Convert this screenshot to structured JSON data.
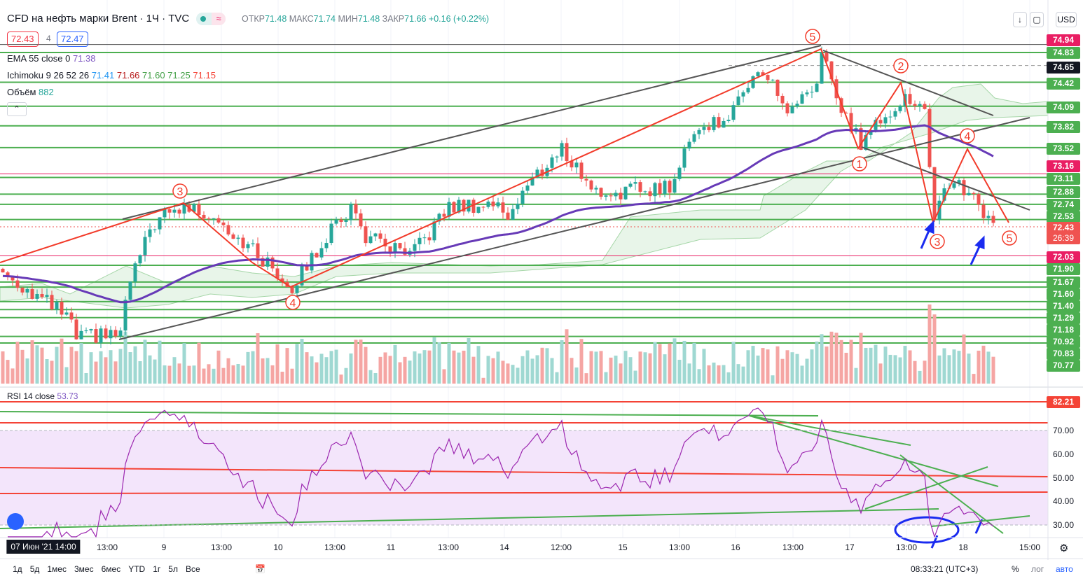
{
  "header": {
    "symbol": "CFD на нефть марки Brent · 1Ч · TVC",
    "status_icon": "≈",
    "ohlc": {
      "open_label": "ОТКР",
      "open": "71.48",
      "high_label": "МАКС",
      "high": "71.74",
      "low_label": "МИН",
      "low": "71.48",
      "close_label": "ЗАКР",
      "close": "71.66",
      "change": "+0.16 (+0.22%)"
    },
    "sell_price": "72.43",
    "spread": "4",
    "buy_price": "72.47",
    "currency": "USD"
  },
  "indicators": {
    "ema": {
      "label": "EMA 55 close 0",
      "value": "71.38"
    },
    "ichimoku": {
      "label": "Ichimoku 9 26 52 26",
      "values": [
        "71.41",
        "71.66",
        "71.60",
        "71.25",
        "71.15"
      ]
    },
    "volume": {
      "label": "Объём",
      "value": "882"
    },
    "rsi": {
      "label": "RSI 14 close",
      "value": "53.73"
    }
  },
  "price_axis": {
    "labels": [
      {
        "text": "74.94",
        "color": "#e91e63"
      },
      {
        "text": "74.83",
        "color": "#4caf50"
      },
      {
        "text": "74.65",
        "color": "#131722"
      },
      {
        "text": "74.42",
        "color": "#4caf50"
      },
      {
        "text": "74.09",
        "color": "#4caf50"
      },
      {
        "text": "73.82",
        "color": "#4caf50"
      },
      {
        "text": "73.52",
        "color": "#4caf50"
      },
      {
        "text": "73.16",
        "color": "#e91e63"
      },
      {
        "text": "73.11",
        "color": "#4caf50"
      },
      {
        "text": "72.88",
        "color": "#4caf50"
      },
      {
        "text": "72.74",
        "color": "#4caf50"
      },
      {
        "text": "72.53",
        "color": "#4caf50"
      },
      {
        "text": "72.43",
        "color": "#ef5350"
      },
      {
        "text": "72.03",
        "color": "#e91e63"
      },
      {
        "text": "71.90",
        "color": "#4caf50"
      },
      {
        "text": "71.67",
        "color": "#4caf50"
      },
      {
        "text": "71.60",
        "color": "#4caf50"
      },
      {
        "text": "71.40",
        "color": "#4caf50"
      },
      {
        "text": "71.29",
        "color": "#4caf50"
      },
      {
        "text": "71.18",
        "color": "#4caf50"
      },
      {
        "text": "70.92",
        "color": "#4caf50"
      },
      {
        "text": "70.83",
        "color": "#4caf50"
      },
      {
        "text": "70.77",
        "color": "#4caf50"
      }
    ],
    "countdown": "26:39",
    "rsi_labels": [
      "82.21",
      "70.00",
      "60.00",
      "50.00",
      "40.00",
      "30.00"
    ]
  },
  "chart_data": {
    "type": "candlestick",
    "waypoints_bar_price": [
      [
        0,
        71.8
      ],
      [
        13,
        71.2
      ],
      [
        15,
        70.9
      ],
      [
        24,
        70.95
      ],
      [
        26,
        71.7
      ],
      [
        31,
        72.5
      ],
      [
        37,
        72.7
      ],
      [
        43,
        72.6
      ],
      [
        51,
        72.1
      ],
      [
        59,
        71.6
      ],
      [
        66,
        72.3
      ],
      [
        71,
        72.7
      ],
      [
        74,
        72.3
      ],
      [
        83,
        72.0
      ],
      [
        91,
        72.7
      ],
      [
        100,
        72.75
      ],
      [
        103,
        72.6
      ],
      [
        107,
        73.0
      ],
      [
        114,
        73.5
      ],
      [
        121,
        72.9
      ],
      [
        124,
        72.9
      ],
      [
        137,
        73.0
      ],
      [
        140,
        73.7
      ],
      [
        149,
        74.0
      ],
      [
        153,
        74.6
      ],
      [
        157,
        74.4
      ],
      [
        160,
        74.0
      ],
      [
        166,
        74.3
      ],
      [
        167,
        74.9
      ],
      [
        171,
        74.0
      ],
      [
        175,
        73.6
      ],
      [
        180,
        74.0
      ],
      [
        184,
        74.2
      ],
      [
        188,
        74.0
      ],
      [
        190,
        72.6
      ],
      [
        194,
        73.1
      ],
      [
        198,
        72.8
      ],
      [
        202,
        72.45
      ]
    ],
    "horizontal_levels": [
      74.83,
      74.42,
      74.09,
      73.82,
      73.52,
      73.11,
      72.88,
      72.74,
      72.53,
      71.9,
      71.67,
      71.6,
      71.4,
      71.29,
      71.18,
      70.92,
      70.83
    ],
    "alert_levels": [
      74.94,
      73.16,
      72.03
    ],
    "current_price": 72.43,
    "rsi_levels": [
      70,
      30
    ],
    "ylim": [
      70.6,
      75.1
    ]
  },
  "waves": [
    "3",
    "4",
    "5",
    "2",
    "1",
    "4",
    "3",
    "5"
  ],
  "time_axis": [
    "07 Июн '21  14:00",
    "13:00",
    "9",
    "13:00",
    "10",
    "13:00",
    "11",
    "13:00",
    "14",
    "12:00",
    "15",
    "13:00",
    "16",
    "13:00",
    "17",
    "13:00",
    "18",
    "15:00"
  ],
  "bottom_bar": {
    "ranges": [
      "1д",
      "5д",
      "1мес",
      "3мес",
      "6мес",
      "YTD",
      "1г",
      "5л",
      "Все"
    ],
    "clock": "08:33:21 (UTC+3)",
    "percent": "%",
    "log": "лог",
    "auto": "авто"
  }
}
